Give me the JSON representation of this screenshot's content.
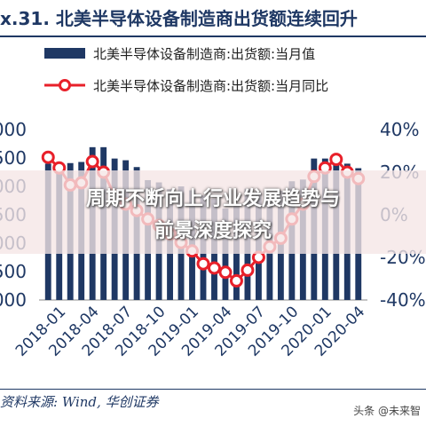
{
  "figure": {
    "title_prefix": "x.31.",
    "title": "北美半导体设备制造商出货额连续回升"
  },
  "chart_data": {
    "type": "bar",
    "title": "北美半导体设备制造商出货额连续回升",
    "x": [
      "2017-12",
      "2018-01",
      "2018-02",
      "2018-03",
      "2018-04",
      "2018-05",
      "2018-06",
      "2018-07",
      "2018-08",
      "2018-09",
      "2018-10",
      "2018-11",
      "2018-12",
      "2019-01",
      "2019-02",
      "2019-03",
      "2019-04",
      "2019-05",
      "2019-06",
      "2019-07",
      "2019-08",
      "2019-09",
      "2019-10",
      "2019-11",
      "2019-12",
      "2020-01",
      "2020-02",
      "2020-03",
      "2020-04"
    ],
    "x_tick_labels": [
      "2018-01",
      "2018-04",
      "2018-07",
      "2018-10",
      "2019-01",
      "2019-04",
      "2019-07",
      "2019-10",
      "2020-01",
      "2020-04"
    ],
    "left_axis": {
      "ticks": [
        "000",
        "500",
        "000",
        "500",
        "000",
        "500",
        "000"
      ],
      "ylim": [
        0,
        3000
      ]
    },
    "right_axis": {
      "ticks": [
        "40%",
        "20%",
        "0%",
        "-20%",
        "-40%"
      ],
      "ylim": [
        -40,
        40
      ]
    },
    "series": [
      {
        "name": "北美半导体设备制造商:出货额:当月值",
        "kind": "bar",
        "color": "#1f3864",
        "axis": "left",
        "values": [
          2400,
          2380,
          2410,
          2430,
          2690,
          2690,
          2490,
          2460,
          2340,
          2110,
          2070,
          1950,
          2000,
          1930,
          1840,
          1780,
          1610,
          1700,
          1960,
          1880,
          1810,
          1920,
          2090,
          2120,
          2490,
          2490,
          2390,
          2400,
          2320
        ]
      },
      {
        "name": "北美半导体设备制造商:出货额:当月同比",
        "kind": "line",
        "color": "#e8202a",
        "axis": "right",
        "values": [
          27,
          22,
          14,
          15,
          25,
          20,
          9,
          5,
          2,
          -2,
          -5,
          -9,
          -13,
          -17,
          -23,
          -25,
          -27,
          -31,
          -26,
          -20,
          -15,
          -11,
          -2,
          5,
          18,
          22,
          26,
          20,
          17
        ]
      }
    ],
    "legend_position": "top",
    "grid": false
  },
  "banner": {
    "line1": "周期不断向上行业发展趋势与",
    "line2": "前景深度探究"
  },
  "source": "资料来源: Wind, 华创证券",
  "watermark": "头条 @未来智"
}
